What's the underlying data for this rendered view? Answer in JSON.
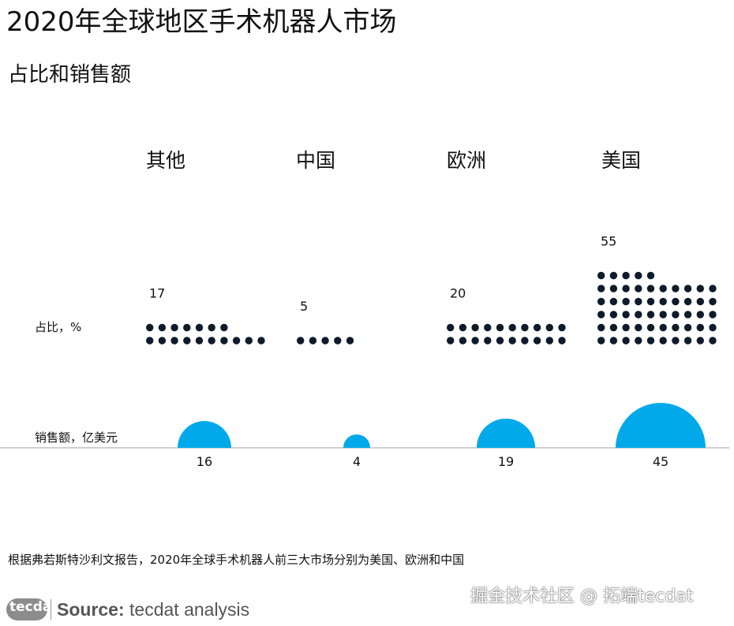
{
  "header": {
    "title": "2020年全球地区手术机器人市场",
    "subtitle": "占比和销售额"
  },
  "chart_data": {
    "type": "dot-and-bubble",
    "row_labels": {
      "share": "占比，%",
      "sales": "销售额，亿美元"
    },
    "categories": [
      "其他",
      "中国",
      "欧洲",
      "美国"
    ],
    "series": [
      {
        "name": "占比，%",
        "values": [
          17,
          5,
          20,
          55
        ]
      },
      {
        "name": "销售额，亿美元",
        "values": [
          16,
          4,
          19,
          45
        ]
      }
    ],
    "colors": {
      "dots": "#0d1b2a",
      "bubbles": "#00a9ea",
      "baseline": "#bfbfbf"
    }
  },
  "footer": {
    "note": "根据弗若斯特沙利文报告，2020年全球手术机器人前三大市场分别为美国、欧洲和中国",
    "logo_text": "tecdat",
    "source_label": "Source:",
    "source_text": "tecdat analysis",
    "watermark": "掘金技术社区 @ 拓端tecdat"
  }
}
